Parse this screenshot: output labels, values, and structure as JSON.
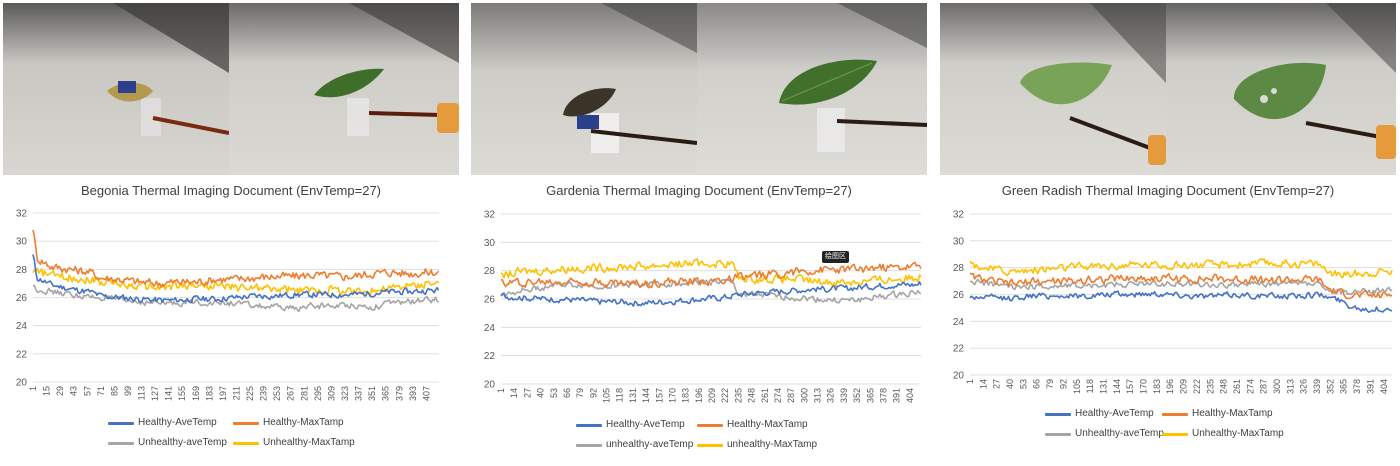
{
  "colors": {
    "ave_healthy": "#4472c4",
    "max_healthy": "#ed7d31",
    "ave_unhealthy": "#a5a5a5",
    "max_unhealthy": "#ffc000"
  },
  "tooltip_label": "绘图区",
  "chart_data": [
    {
      "type": "line",
      "title": "Begonia Thermal Imaging Document (EnvTemp=27)",
      "xlabel": "",
      "ylabel": "",
      "ylim": [
        20,
        32
      ],
      "yticks": [
        20,
        22,
        24,
        26,
        28,
        30,
        32
      ],
      "xlim": [
        1,
        420
      ],
      "xticks": [
        1,
        15,
        29,
        43,
        57,
        71,
        85,
        99,
        113,
        127,
        141,
        155,
        169,
        183,
        197,
        211,
        225,
        239,
        253,
        267,
        281,
        295,
        309,
        323,
        337,
        351,
        365,
        379,
        393,
        407
      ],
      "grid": true,
      "legend_position": "bottom",
      "series": [
        {
          "name": "Healthy-AveTemp",
          "color_key": "ave_healthy",
          "x": [
            1,
            5,
            20,
            40,
            60,
            71,
            90,
            110,
            130,
            150,
            170,
            190,
            210,
            230,
            250,
            270,
            290,
            310,
            330,
            350,
            370,
            390,
            410,
            420
          ],
          "values": [
            29.0,
            27.4,
            26.9,
            26.6,
            26.4,
            26.1,
            26.0,
            25.9,
            25.8,
            25.8,
            25.9,
            25.9,
            26.0,
            26.1,
            26.1,
            26.2,
            26.2,
            26.2,
            26.2,
            26.3,
            26.4,
            26.4,
            26.5,
            26.5
          ]
        },
        {
          "name": "Healthy-MaxTamp",
          "color_key": "max_healthy",
          "x": [
            1,
            5,
            20,
            40,
            60,
            71,
            90,
            110,
            130,
            150,
            170,
            190,
            210,
            230,
            250,
            270,
            290,
            310,
            330,
            350,
            370,
            390,
            410,
            420
          ],
          "values": [
            31.0,
            28.8,
            28.2,
            28.0,
            27.8,
            27.4,
            27.3,
            27.1,
            27.0,
            27.1,
            27.1,
            27.3,
            27.3,
            27.4,
            27.5,
            27.5,
            27.6,
            27.5,
            27.5,
            27.7,
            27.8,
            27.7,
            27.8,
            27.8
          ]
        },
        {
          "name": "Unhealthy-aveTemp",
          "color_key": "ave_unhealthy",
          "x": [
            1,
            5,
            20,
            40,
            60,
            71,
            90,
            110,
            130,
            150,
            170,
            190,
            210,
            230,
            250,
            270,
            290,
            310,
            330,
            350,
            370,
            390,
            410,
            420
          ],
          "values": [
            26.8,
            26.6,
            26.4,
            26.2,
            26.0,
            26.0,
            25.8,
            25.7,
            25.6,
            25.6,
            25.7,
            25.6,
            25.6,
            25.4,
            25.3,
            25.2,
            25.4,
            25.4,
            25.5,
            25.3,
            25.6,
            25.7,
            25.8,
            25.9
          ]
        },
        {
          "name": "Unhealthy-MaxTamp",
          "color_key": "max_unhealthy",
          "x": [
            1,
            5,
            20,
            40,
            60,
            71,
            90,
            110,
            130,
            150,
            170,
            190,
            210,
            230,
            250,
            270,
            290,
            310,
            330,
            350,
            370,
            390,
            410,
            420
          ],
          "values": [
            28.0,
            27.8,
            27.6,
            27.4,
            27.3,
            27.1,
            27.0,
            26.8,
            26.7,
            26.8,
            26.9,
            26.8,
            26.7,
            26.7,
            26.6,
            26.5,
            26.5,
            26.6,
            26.4,
            26.5,
            26.7,
            26.8,
            27.0,
            27.1
          ]
        }
      ]
    },
    {
      "type": "line",
      "title": "Gardenia Thermal Imaging Document (EnvTemp=27)",
      "xlabel": "",
      "ylabel": "",
      "ylim": [
        20,
        32
      ],
      "yticks": [
        20,
        22,
        24,
        26,
        28,
        30,
        32
      ],
      "xlim": [
        1,
        415
      ],
      "xticks": [
        1,
        14,
        27,
        40,
        53,
        66,
        79,
        92,
        105,
        118,
        131,
        144,
        157,
        170,
        183,
        196,
        209,
        222,
        235,
        248,
        261,
        274,
        287,
        300,
        313,
        326,
        339,
        352,
        365,
        378,
        391,
        404
      ],
      "grid": true,
      "legend_position": "bottom",
      "series": [
        {
          "name": "Healthy-AveTemp",
          "color_key": "ave_healthy",
          "x": [
            1,
            20,
            40,
            60,
            80,
            100,
            120,
            140,
            160,
            180,
            200,
            220,
            235,
            250,
            270,
            290,
            310,
            330,
            350,
            370,
            390,
            410,
            415
          ],
          "values": [
            26.2,
            26.1,
            26.0,
            26.0,
            25.9,
            25.8,
            25.8,
            25.7,
            25.8,
            25.9,
            26.0,
            26.1,
            26.3,
            26.4,
            26.5,
            26.6,
            26.7,
            26.7,
            26.8,
            26.9,
            27.0,
            27.0,
            27.1
          ]
        },
        {
          "name": "Healthy-MaxTamp",
          "color_key": "max_healthy",
          "x": [
            1,
            20,
            40,
            60,
            80,
            100,
            120,
            140,
            160,
            180,
            200,
            220,
            235,
            250,
            270,
            290,
            310,
            330,
            350,
            370,
            390,
            410,
            415
          ],
          "values": [
            27.1,
            27.2,
            27.2,
            27.2,
            27.3,
            27.2,
            27.1,
            27.1,
            27.2,
            27.2,
            27.3,
            27.3,
            27.5,
            27.6,
            27.8,
            27.9,
            28.0,
            28.1,
            28.1,
            28.2,
            28.2,
            28.3,
            28.3
          ]
        },
        {
          "name": "unhealthy-aveTemp",
          "color_key": "ave_unhealthy",
          "x": [
            1,
            20,
            40,
            60,
            80,
            100,
            120,
            140,
            160,
            180,
            200,
            220,
            229,
            235,
            250,
            270,
            290,
            310,
            330,
            350,
            370,
            390,
            410,
            415
          ],
          "values": [
            26.3,
            26.6,
            26.8,
            27.0,
            27.0,
            26.9,
            27.0,
            27.0,
            27.1,
            27.1,
            27.2,
            27.2,
            27.2,
            26.4,
            26.3,
            26.2,
            26.1,
            26.0,
            25.9,
            25.9,
            26.1,
            26.3,
            26.5,
            26.5
          ]
        },
        {
          "name": "unhealthy-MaxTamp",
          "color_key": "max_unhealthy",
          "x": [
            1,
            20,
            40,
            60,
            80,
            100,
            120,
            140,
            160,
            180,
            200,
            220,
            229,
            235,
            250,
            270,
            290,
            310,
            330,
            350,
            370,
            390,
            410,
            415
          ],
          "values": [
            27.6,
            27.9,
            28.0,
            28.1,
            28.2,
            28.2,
            28.3,
            28.3,
            28.4,
            28.5,
            28.5,
            28.5,
            28.5,
            27.5,
            27.4,
            27.4,
            27.4,
            27.2,
            27.2,
            27.2,
            27.3,
            27.4,
            27.5,
            27.6
          ]
        }
      ]
    },
    {
      "type": "line",
      "title": "Green Radish Thermal Imaging Document (EnvTemp=27)",
      "xlabel": "",
      "ylabel": "",
      "ylim": [
        20,
        32
      ],
      "yticks": [
        20,
        22,
        24,
        26,
        28,
        30,
        32
      ],
      "xlim": [
        1,
        412
      ],
      "xticks": [
        1,
        14,
        27,
        40,
        53,
        66,
        79,
        92,
        105,
        118,
        131,
        144,
        157,
        170,
        183,
        196,
        209,
        222,
        235,
        248,
        261,
        274,
        287,
        300,
        313,
        326,
        339,
        352,
        365,
        378,
        391,
        404
      ],
      "grid": true,
      "legend_position": "bottom",
      "series": [
        {
          "name": "Healthy-AveTemp",
          "color_key": "ave_healthy",
          "x": [
            1,
            20,
            40,
            60,
            80,
            100,
            120,
            140,
            160,
            180,
            200,
            220,
            240,
            260,
            280,
            300,
            320,
            340,
            350,
            360,
            370,
            380,
            390,
            400,
            412
          ],
          "values": [
            25.8,
            25.8,
            25.7,
            25.9,
            25.9,
            25.9,
            25.9,
            26.0,
            26.0,
            26.1,
            26.0,
            25.9,
            25.9,
            26.0,
            25.9,
            25.9,
            25.9,
            26.0,
            25.8,
            25.6,
            25.2,
            25.0,
            24.9,
            24.9,
            24.9
          ]
        },
        {
          "name": "Healthy-MaxTamp",
          "color_key": "max_healthy",
          "x": [
            1,
            20,
            40,
            60,
            80,
            100,
            120,
            140,
            160,
            180,
            200,
            220,
            240,
            260,
            280,
            300,
            320,
            340,
            350,
            360,
            370,
            380,
            390,
            400,
            412
          ],
          "values": [
            27.4,
            27.0,
            26.8,
            26.9,
            27.0,
            27.0,
            27.1,
            27.2,
            27.2,
            27.2,
            27.2,
            27.1,
            27.2,
            27.1,
            27.1,
            27.1,
            27.1,
            27.1,
            26.4,
            26.1,
            26.0,
            25.9,
            25.9,
            25.9,
            26.0
          ]
        },
        {
          "name": "Unhealthy-aveTemp",
          "color_key": "ave_unhealthy",
          "x": [
            1,
            20,
            40,
            60,
            80,
            100,
            120,
            140,
            160,
            180,
            200,
            220,
            240,
            260,
            280,
            300,
            320,
            340,
            350,
            360,
            370,
            380,
            390,
            400,
            412
          ],
          "values": [
            27.0,
            26.8,
            26.6,
            26.6,
            26.6,
            26.7,
            26.7,
            26.7,
            26.8,
            26.8,
            26.8,
            26.8,
            26.7,
            26.7,
            26.8,
            26.8,
            26.8,
            26.8,
            26.2,
            26.2,
            26.2,
            26.2,
            26.3,
            26.3,
            26.3
          ]
        },
        {
          "name": "Unhealthy-MaxTamp",
          "color_key": "max_unhealthy",
          "x": [
            1,
            20,
            40,
            60,
            80,
            100,
            120,
            140,
            160,
            180,
            200,
            220,
            240,
            260,
            280,
            300,
            320,
            340,
            350,
            360,
            370,
            380,
            390,
            400,
            412
          ],
          "values": [
            28.3,
            27.9,
            27.7,
            27.8,
            27.9,
            28.0,
            28.1,
            28.1,
            28.2,
            28.2,
            28.2,
            28.2,
            28.2,
            28.2,
            28.3,
            28.3,
            28.3,
            28.3,
            27.7,
            27.5,
            27.5,
            27.6,
            27.6,
            27.7,
            27.7
          ]
        }
      ]
    }
  ]
}
